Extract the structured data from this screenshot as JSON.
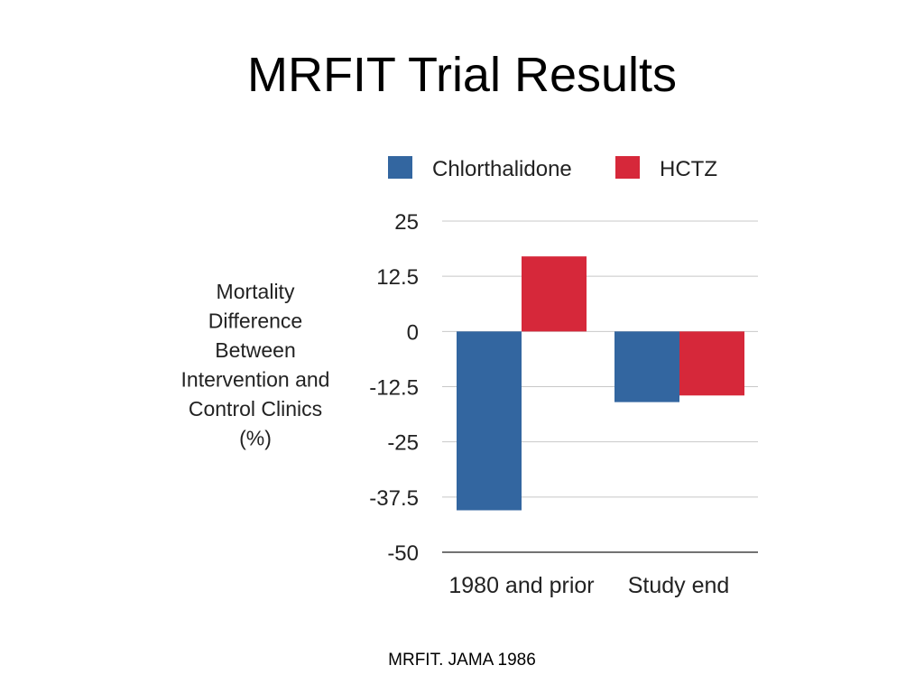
{
  "slide": {
    "title": "MRFIT Trial Results",
    "source": "MRFIT.  JAMA 1986"
  },
  "chart_data": {
    "type": "bar",
    "title": "",
    "categories": [
      "1980 and prior",
      "Study end"
    ],
    "series": [
      {
        "name": "Chlorthalidone",
        "color": "#3366a0",
        "values": [
          -40.5,
          -16
        ]
      },
      {
        "name": "HCTZ",
        "color": "#d6283a",
        "values": [
          17,
          -14.5
        ]
      }
    ],
    "ylabel": [
      "Mortality",
      "Difference",
      "Between",
      "Intervention and",
      "Control Clinics",
      "(%)"
    ],
    "xlabel": "",
    "ylim": [
      -50,
      25
    ],
    "yticks": [
      25,
      12.5,
      0,
      -12.5,
      -25,
      -37.5,
      -50
    ],
    "ytick_labels": [
      "25",
      "12.5",
      "0",
      "-12.5",
      "-25",
      "-37.5",
      "-50"
    ],
    "grid": true,
    "legend": "top"
  }
}
